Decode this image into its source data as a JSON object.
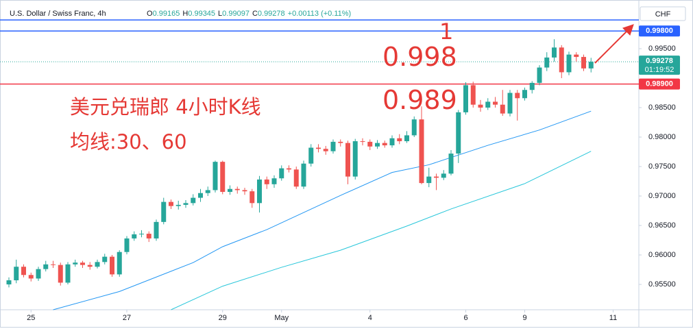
{
  "chart_data": {
    "type": "candlestick",
    "title": "U.S. Dollar / Swiss Franc, 4h",
    "ohlc_labels": {
      "open": "O",
      "high": "H",
      "low": "L",
      "close": "C"
    },
    "change": "+0.00113 (+0.11%)",
    "currency": "CHF",
    "countdown": "01:19:52",
    "up_color": "#26a69a",
    "down_color": "#ef5350",
    "categories": [
      null,
      null,
      null,
      "25",
      null,
      null,
      null,
      null,
      null,
      null,
      null,
      null,
      null,
      null,
      null,
      null,
      "27",
      null,
      null,
      null,
      null,
      null,
      null,
      null,
      null,
      null,
      null,
      null,
      null,
      "29",
      null,
      null,
      null,
      null,
      null,
      null,
      null,
      "May",
      null,
      null,
      null,
      null,
      null,
      null,
      null,
      null,
      null,
      null,
      null,
      "4",
      null,
      null,
      null,
      null,
      null,
      null,
      null,
      null,
      null,
      null,
      null,
      null,
      "6",
      null,
      null,
      null,
      null,
      null,
      null,
      null,
      "9",
      null,
      null,
      null,
      null,
      null,
      null,
      null,
      null,
      null,
      null,
      null,
      "11"
    ],
    "open": [
      0.955,
      0.9557,
      0.958,
      0.9566,
      0.956,
      0.9576,
      0.9584,
      0.9583,
      0.9553,
      0.9584,
      0.9587,
      0.9583,
      0.958,
      0.9588,
      0.9597,
      0.9567,
      0.9605,
      0.9628,
      0.9635,
      0.9636,
      0.9628,
      0.9656,
      0.969,
      0.9683,
      0.9685,
      0.9688,
      0.9697,
      0.9705,
      0.971,
      0.9758,
      0.9707,
      0.9712,
      0.971,
      0.9708,
      0.9688,
      0.9728,
      0.972,
      0.973,
      0.9747,
      0.9745,
      0.9716,
      0.9755,
      0.9782,
      0.978,
      0.9776,
      0.9792,
      0.979,
      0.9733,
      0.9793,
      0.9792,
      0.9784,
      0.979,
      0.9786,
      0.9798,
      0.9793,
      0.9803,
      0.983,
      0.9722,
      0.9733,
      0.9731,
      0.9738,
      0.9772,
      0.9842,
      0.9888,
      0.9855,
      0.985,
      0.986,
      0.9855,
      0.984,
      0.9875,
      0.9866,
      0.988,
      0.9892,
      0.9918,
      0.9935,
      0.9952,
      0.991,
      0.994,
      0.9936,
      0.99165,
      null,
      null,
      null
    ],
    "high": [
      0.9562,
      0.9592,
      0.9584,
      0.957,
      0.958,
      0.959,
      0.959,
      0.9587,
      0.9588,
      0.9592,
      0.959,
      0.9588,
      0.9592,
      0.9602,
      0.96,
      0.9608,
      0.9632,
      0.964,
      0.9642,
      0.964,
      0.966,
      0.9697,
      0.9694,
      0.9692,
      0.9693,
      0.9703,
      0.9712,
      0.9716,
      0.976,
      0.976,
      0.9718,
      0.9716,
      0.9714,
      0.9712,
      0.9734,
      0.9733,
      0.9735,
      0.9752,
      0.9752,
      0.975,
      0.976,
      0.9788,
      0.9788,
      0.9785,
      0.9796,
      0.9796,
      0.9794,
      0.9797,
      0.9798,
      0.9796,
      0.9795,
      0.9794,
      0.9803,
      0.9805,
      0.981,
      0.9835,
      0.9852,
      0.9748,
      0.9738,
      0.9744,
      0.9778,
      0.9846,
      0.9893,
      0.9894,
      0.9863,
      0.9866,
      0.9868,
      0.988,
      0.988,
      0.988,
      0.9884,
      0.9895,
      0.9922,
      0.9944,
      0.9966,
      0.9956,
      0.9945,
      0.9944,
      0.994,
      0.99345,
      null,
      null,
      null
    ],
    "low": [
      0.9545,
      0.9552,
      0.9562,
      0.9555,
      0.9556,
      0.9572,
      0.9578,
      0.9548,
      0.955,
      0.958,
      0.9578,
      0.9575,
      0.9577,
      0.9584,
      0.9563,
      0.9563,
      0.9601,
      0.9624,
      0.963,
      0.9622,
      0.9624,
      0.9652,
      0.9678,
      0.9677,
      0.968,
      0.9684,
      0.969,
      0.97,
      0.9706,
      0.9703,
      0.9702,
      0.9704,
      0.9702,
      0.968,
      0.9672,
      0.9712,
      0.9714,
      0.9726,
      0.974,
      0.9712,
      0.9712,
      0.975,
      0.9774,
      0.977,
      0.9772,
      0.9784,
      0.972,
      0.9728,
      0.9786,
      0.9778,
      0.978,
      0.9782,
      0.9782,
      0.9788,
      0.979,
      0.98,
      0.972,
      0.9715,
      0.971,
      0.9727,
      0.9735,
      0.9756,
      0.9838,
      0.985,
      0.9843,
      0.9846,
      0.985,
      0.9836,
      0.9835,
      0.9828,
      0.9862,
      0.9874,
      0.9888,
      0.9912,
      0.9928,
      0.99,
      0.9905,
      0.9928,
      0.9912,
      0.99097,
      null,
      null,
      null
    ],
    "close": [
      0.9557,
      0.958,
      0.9566,
      0.956,
      0.9576,
      0.9584,
      0.9583,
      0.9553,
      0.9584,
      0.9587,
      0.9583,
      0.958,
      0.9588,
      0.9597,
      0.9567,
      0.9605,
      0.9628,
      0.9635,
      0.9636,
      0.9628,
      0.9656,
      0.969,
      0.9683,
      0.9685,
      0.9688,
      0.9697,
      0.9705,
      0.971,
      0.9758,
      0.9707,
      0.9712,
      0.971,
      0.9708,
      0.9688,
      0.9728,
      0.972,
      0.973,
      0.9747,
      0.9745,
      0.9716,
      0.9755,
      0.9782,
      0.978,
      0.9776,
      0.9792,
      0.979,
      0.9733,
      0.9793,
      0.9792,
      0.9784,
      0.979,
      0.9786,
      0.9798,
      0.9793,
      0.9803,
      0.983,
      0.9722,
      0.9733,
      0.9731,
      0.9738,
      0.9772,
      0.9842,
      0.9888,
      0.9855,
      0.985,
      0.986,
      0.9855,
      0.984,
      0.9875,
      0.9866,
      0.988,
      0.9892,
      0.9918,
      0.9935,
      0.9952,
      0.991,
      0.994,
      0.9936,
      0.99165,
      0.99278,
      null,
      null,
      null
    ],
    "moving_averages": [
      {
        "color": "#2196f3",
        "x": [
          6,
          15,
          25,
          29,
          35,
          45,
          52,
          57,
          65,
          72,
          79
        ],
        "values": [
          0.9507,
          0.9538,
          0.9587,
          0.9614,
          0.9643,
          0.9701,
          0.974,
          0.9753,
          0.9786,
          0.9812,
          0.9844
        ]
      },
      {
        "color": "#26c6da",
        "x": [
          22,
          29,
          37,
          45,
          54,
          60,
          70,
          79
        ],
        "values": [
          0.9507,
          0.9547,
          0.9579,
          0.9608,
          0.9649,
          0.9678,
          0.9721,
          0.9776
        ]
      }
    ],
    "price_lines": [
      {
        "value": 0.99988,
        "color": "#2962ff"
      },
      {
        "value": 0.998,
        "label": "0.99800",
        "color": "#2962ff"
      },
      {
        "value": 0.989,
        "label": "0.98900",
        "color": "#f23645"
      }
    ],
    "ylim": [
      0.9507,
      1.00326
    ],
    "yticks": [
      {
        "value": 0.955,
        "label": "0.95500"
      },
      {
        "value": 0.96,
        "label": "0.96000"
      },
      {
        "value": 0.965,
        "label": "0.96500"
      },
      {
        "value": 0.97,
        "label": "0.97000"
      },
      {
        "value": 0.975,
        "label": "0.97500"
      },
      {
        "value": 0.98,
        "label": "0.98000"
      },
      {
        "value": 0.985,
        "label": "0.98500"
      },
      {
        "value": 0.995,
        "label": "0.99500"
      }
    ],
    "annotations": [
      "1",
      "0.998",
      "0.989",
      "美元兑瑞郎 4小时K线",
      "均线:30、60"
    ]
  }
}
